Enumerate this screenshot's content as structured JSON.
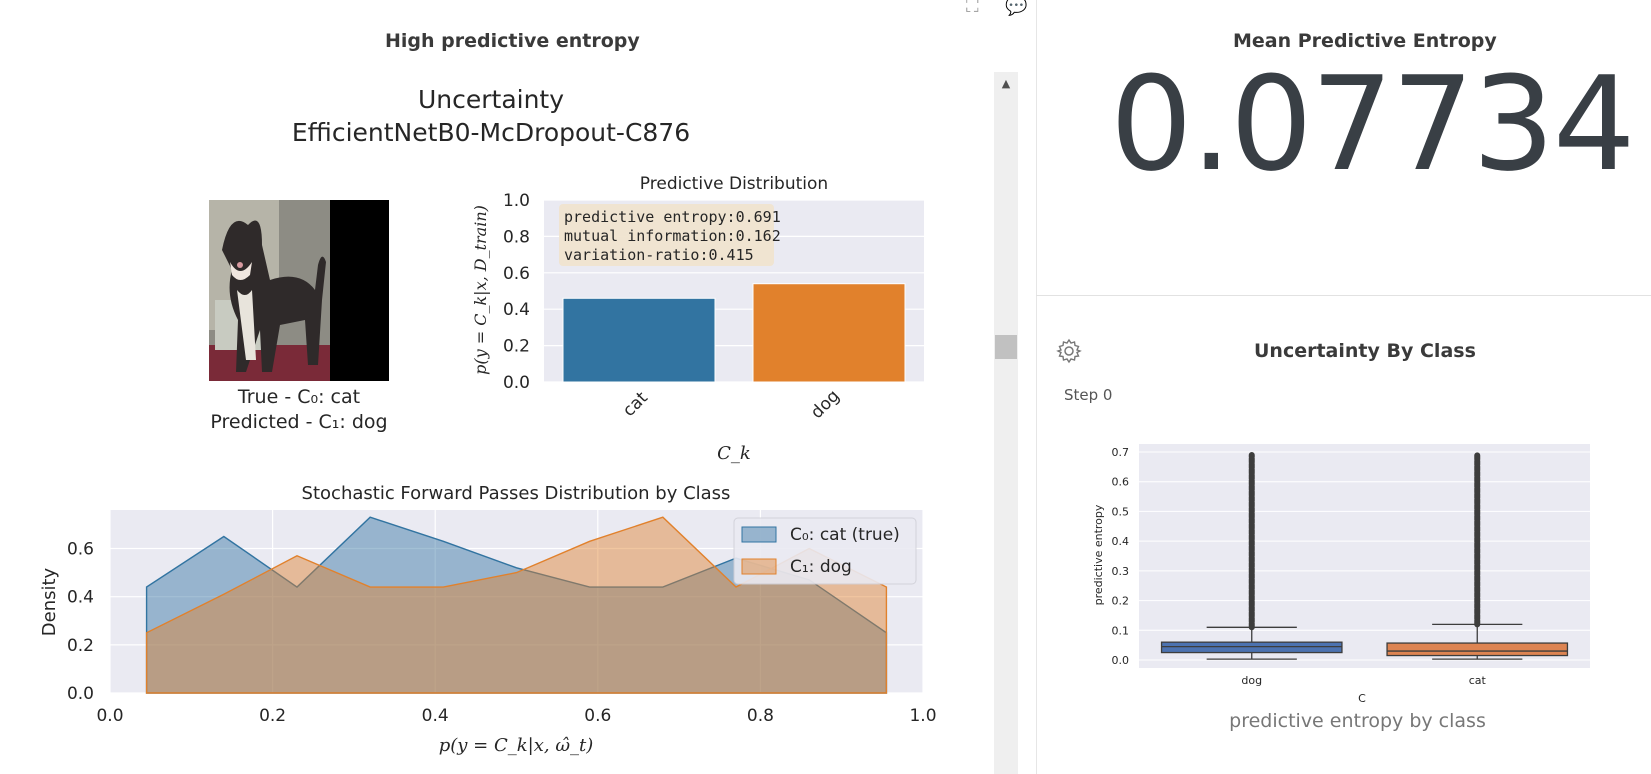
{
  "left_panel": {
    "title": "High predictive entropy",
    "figure_title_line1": "Uncertainty",
    "figure_title_line2": "EfficientNetB0-McDropout-C876",
    "image_caption_true": "True - C₀: cat",
    "image_caption_pred": "Predicted - C₁: dog"
  },
  "right_panel": {
    "metric_title": "Mean Predictive Entropy",
    "metric_value": "0.07734",
    "chart_title": "Uncertainty By Class",
    "step_label": "Step 0",
    "caption": "predictive entropy by class"
  },
  "icons": [
    "expand-icon",
    "comment-icon",
    "gear-icon",
    "scroll-up-icon"
  ],
  "colors": {
    "blue": "#3274a1",
    "orange": "#e1812c",
    "plot_bg": "#eaeaf2",
    "box_blue": "#4c72b0",
    "box_orange": "#dd8452"
  },
  "chart_data": [
    {
      "type": "bar",
      "title": "Predictive Distribution",
      "ylabel": "p(y = C_k|x, D_train)",
      "xlabel": "C_k",
      "categories": [
        "cat",
        "dog"
      ],
      "values": [
        0.46,
        0.54
      ],
      "colors": [
        "#3274a1",
        "#e1812c"
      ],
      "ylim": [
        0.0,
        1.0
      ],
      "yticks": [
        "0.0",
        "0.2",
        "0.4",
        "0.6",
        "0.8",
        "1.0"
      ],
      "annotation": [
        "predictive entropy:0.691",
        "mutual information:0.162",
        "variation-ratio:0.415"
      ]
    },
    {
      "type": "area",
      "title": "Stochastic Forward Passes Distribution by Class",
      "xlabel": "p(y = C_k|x, ω̂_t)",
      "ylabel": "Density",
      "xlim": [
        0.0,
        1.0
      ],
      "ylim": [
        0.0,
        0.76
      ],
      "xticks": [
        "0.0",
        "0.2",
        "0.4",
        "0.6",
        "0.8",
        "1.0"
      ],
      "yticks": [
        "0.0",
        "0.2",
        "0.4",
        "0.6"
      ],
      "legend_position": "top-right",
      "series": [
        {
          "name": "C₀: cat (true)",
          "color": "#3274a1",
          "x": [
            0.045,
            0.14,
            0.23,
            0.32,
            0.41,
            0.5,
            0.59,
            0.68,
            0.77,
            0.86,
            0.955
          ],
          "values": [
            0.44,
            0.65,
            0.44,
            0.73,
            0.63,
            0.52,
            0.44,
            0.44,
            0.56,
            0.47,
            0.25
          ]
        },
        {
          "name": "C₁: dog",
          "color": "#e1812c",
          "x": [
            0.045,
            0.14,
            0.23,
            0.32,
            0.41,
            0.5,
            0.59,
            0.68,
            0.77,
            0.86,
            0.955
          ],
          "values": [
            0.25,
            0.41,
            0.57,
            0.44,
            0.44,
            0.5,
            0.63,
            0.73,
            0.44,
            0.6,
            0.44
          ]
        }
      ]
    },
    {
      "type": "box",
      "title": "Uncertainty By Class",
      "ylabel": "predictive entropy",
      "xlabel": "C",
      "ylim": [
        0.0,
        0.7
      ],
      "yticks": [
        "0.0",
        "0.1",
        "0.2",
        "0.3",
        "0.4",
        "0.5",
        "0.6",
        "0.7"
      ],
      "categories": [
        "dog",
        "cat"
      ],
      "boxes": [
        {
          "name": "dog",
          "color": "#4c72b0",
          "min": 0.003,
          "q1": 0.025,
          "median": 0.045,
          "q3": 0.06,
          "whisker_high": 0.11,
          "outlier_max": 0.69
        },
        {
          "name": "cat",
          "color": "#dd8452",
          "min": 0.003,
          "q1": 0.015,
          "median": 0.03,
          "q3": 0.057,
          "whisker_high": 0.12,
          "outlier_max": 0.69
        }
      ]
    }
  ]
}
